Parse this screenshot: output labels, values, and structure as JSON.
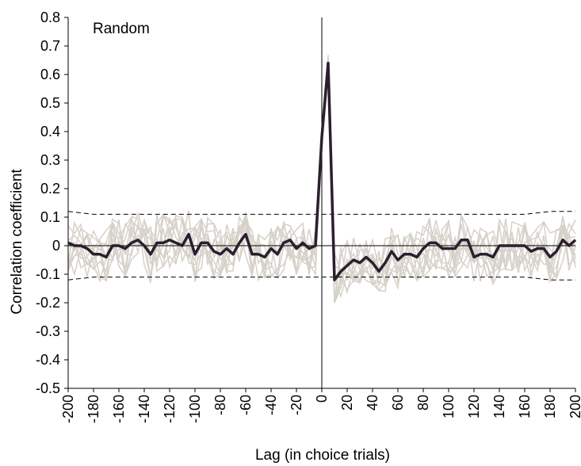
{
  "chart_data": {
    "type": "line",
    "title": "",
    "panel_label": "Random",
    "xlabel": "Lag (in choice trials)",
    "ylabel": "Correlation coefficient",
    "xlim": [
      -200,
      200
    ],
    "ylim": [
      -0.5,
      0.8
    ],
    "grid": false,
    "legend": "none",
    "x_ticks": [
      -200,
      -180,
      -160,
      -140,
      -120,
      -100,
      -80,
      -60,
      -40,
      -20,
      0,
      20,
      40,
      60,
      80,
      100,
      120,
      140,
      160,
      180,
      200
    ],
    "y_ticks": [
      -0.5,
      -0.4,
      -0.3,
      -0.2,
      -0.1,
      0,
      0.1,
      0.2,
      0.3,
      0.4,
      0.5,
      0.6,
      0.7,
      0.8
    ],
    "y_tick_labels": [
      "-0.5",
      "-0.4",
      "-0.3",
      "-0.2",
      "-0.1",
      "0",
      "0.1",
      "0.2",
      "0.3",
      "0.4",
      "0.5",
      "0.6",
      "0.7",
      "0.8"
    ],
    "x": [
      -200,
      -195,
      -190,
      -185,
      -180,
      -175,
      -170,
      -165,
      -160,
      -155,
      -150,
      -145,
      -140,
      -135,
      -130,
      -125,
      -120,
      -115,
      -110,
      -105,
      -100,
      -95,
      -90,
      -85,
      -80,
      -75,
      -70,
      -65,
      -60,
      -55,
      -50,
      -45,
      -40,
      -35,
      -30,
      -25,
      -20,
      -15,
      -10,
      -5,
      0,
      5,
      10,
      15,
      20,
      25,
      30,
      35,
      40,
      45,
      50,
      55,
      60,
      65,
      70,
      75,
      80,
      85,
      90,
      95,
      100,
      105,
      110,
      115,
      120,
      125,
      130,
      135,
      140,
      145,
      150,
      155,
      160,
      165,
      170,
      175,
      180,
      185,
      190,
      195,
      200
    ],
    "mean_series": {
      "color": "#2b1f2e",
      "values": [
        0.01,
        0,
        0,
        -0.01,
        -0.03,
        -0.03,
        -0.04,
        0,
        0,
        -0.01,
        0.01,
        0.02,
        0,
        -0.03,
        0.01,
        0.01,
        0.02,
        0.01,
        0,
        0.04,
        -0.03,
        0.01,
        0.01,
        -0.02,
        -0.03,
        -0.01,
        -0.03,
        0.01,
        0.04,
        -0.03,
        -0.03,
        -0.04,
        -0.01,
        -0.03,
        0.01,
        0.02,
        -0.01,
        0.01,
        -0.01,
        0,
        0.38,
        0.64,
        -0.12,
        -0.09,
        -0.07,
        -0.05,
        -0.06,
        -0.04,
        -0.06,
        -0.09,
        -0.06,
        -0.02,
        -0.05,
        -0.03,
        -0.03,
        -0.04,
        -0.01,
        0.01,
        0.01,
        -0.01,
        -0.01,
        -0.01,
        0.02,
        0.02,
        -0.04,
        -0.03,
        -0.03,
        -0.04,
        0,
        0,
        0,
        0,
        0,
        -0.02,
        -0.01,
        -0.01,
        -0.04,
        -0.02,
        0.02,
        0,
        0.02
      ]
    },
    "individual_series": {
      "color": "#d6d1c9",
      "count": 10,
      "peak_max": 0.67,
      "noise_min": -0.2,
      "noise_max": 0.15
    },
    "significance_bounds": {
      "style": "dashed",
      "x": [
        -200,
        -180,
        -160,
        -140,
        -120,
        -100,
        -80,
        -60,
        -40,
        -20,
        0,
        20,
        40,
        60,
        80,
        100,
        120,
        140,
        160,
        180,
        200
      ],
      "upper": [
        0.12,
        0.11,
        0.11,
        0.11,
        0.11,
        0.11,
        0.11,
        0.11,
        0.11,
        0.11,
        0.11,
        0.11,
        0.11,
        0.11,
        0.11,
        0.11,
        0.11,
        0.11,
        0.11,
        0.12,
        0.12
      ],
      "lower": [
        -0.12,
        -0.11,
        -0.11,
        -0.11,
        -0.11,
        -0.11,
        -0.11,
        -0.11,
        -0.11,
        -0.11,
        -0.11,
        -0.11,
        -0.11,
        -0.11,
        -0.11,
        -0.11,
        -0.11,
        -0.11,
        -0.11,
        -0.12,
        -0.12
      ]
    }
  }
}
